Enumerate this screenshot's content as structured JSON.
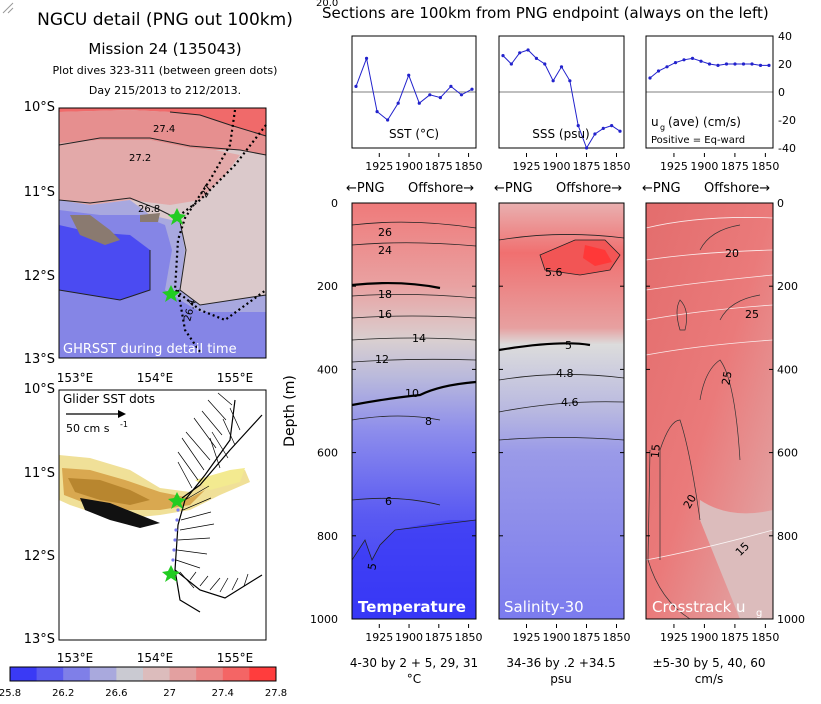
{
  "header": {
    "title": "NGCU detail (PNG out 100km)",
    "mission": "Mission 24 (135043)",
    "dives": "Plot dives 323-311 (between green dots)",
    "days": "Day 215/2013 to 212/2013.",
    "sections": "Sections are 100km from PNG endpoint (always on the left)",
    "clipped_top": "20.0"
  },
  "map_top": {
    "label": "GHRSST during detail time",
    "lat_labels": [
      "10°S",
      "11°S",
      "12°S",
      "13°S"
    ],
    "lon_labels": [
      "153°E",
      "154°E",
      "155°E"
    ],
    "contour_labels": [
      "27.4",
      "27.2",
      "27",
      "26.8",
      "26.4"
    ]
  },
  "map_bottom": {
    "label": "Glider SST dots",
    "scale_label": "50 cm s",
    "scale_exp": "-1",
    "lat_labels": [
      "10°S",
      "11°S",
      "12°S",
      "13°S"
    ],
    "lon_labels": [
      "153°E",
      "154°E",
      "155°E"
    ]
  },
  "colorbar": {
    "ticks": [
      "25.8",
      "26.2",
      "26.6",
      "27",
      "27.4",
      "27.8"
    ],
    "colors": [
      "#3a3af5",
      "#5b5bef",
      "#7f7fe8",
      "#a9a9dd",
      "#cacad2",
      "#dcbcbc",
      "#e3a0a0",
      "#eb8484",
      "#f46565",
      "#ff3d3d"
    ]
  },
  "line_charts": {
    "x_ticks": [
      "1925",
      "1900",
      "1875",
      "1850"
    ],
    "sst": {
      "title": "SST (°C)",
      "values": [
        0.1,
        0.6,
        -0.35,
        -0.5,
        -0.2,
        0.3,
        -0.2,
        -0.05,
        -0.1,
        0.1,
        -0.05,
        0.05
      ]
    },
    "sss": {
      "title": "SSS (psu)",
      "values": [
        0.65,
        0.5,
        0.7,
        0.75,
        0.6,
        0.5,
        0.2,
        0.45,
        0.2,
        -0.6,
        -1.0,
        -0.75,
        -0.65,
        -0.6,
        -0.7
      ]
    },
    "ug": {
      "title": "u",
      "sub": "g",
      "title_tail": "(ave) (cm/s)",
      "note": "Positive = Eq-ward",
      "right_ticks": [
        "40",
        "20",
        "0",
        "-20",
        "-40"
      ],
      "values": [
        10,
        15,
        18,
        21,
        23,
        24,
        22,
        20,
        19,
        20,
        20,
        20,
        20,
        19,
        19
      ]
    }
  },
  "sections": {
    "png_label": "←PNG",
    "offshore_label": "Offshore→",
    "ylabel": "Depth (m)",
    "depth_ticks": [
      "0",
      "200",
      "400",
      "600",
      "800",
      "1000"
    ],
    "x_ticks": [
      "1925",
      "1900",
      "1875",
      "1850"
    ],
    "temperature": {
      "label": "Temperature",
      "contours": [
        "26",
        "24",
        "18",
        "16",
        "14",
        "12",
        "10",
        "8",
        "6",
        "5"
      ],
      "caption": "4-30 by 2 + 5, 29, 31",
      "unit": "°C"
    },
    "salinity": {
      "label": "Salinity-30",
      "contours": [
        "5.6",
        "5",
        "4.8",
        "4.6"
      ],
      "caption": "34-36 by .2 +34.5",
      "unit": "psu"
    },
    "crosstrack": {
      "label": "Crosstrack u",
      "sub": "g",
      "contours": [
        "20",
        "25",
        "25",
        "15",
        "20",
        "15"
      ],
      "caption": "±5-30 by 5, 40, 60",
      "unit": "cm/s"
    }
  }
}
